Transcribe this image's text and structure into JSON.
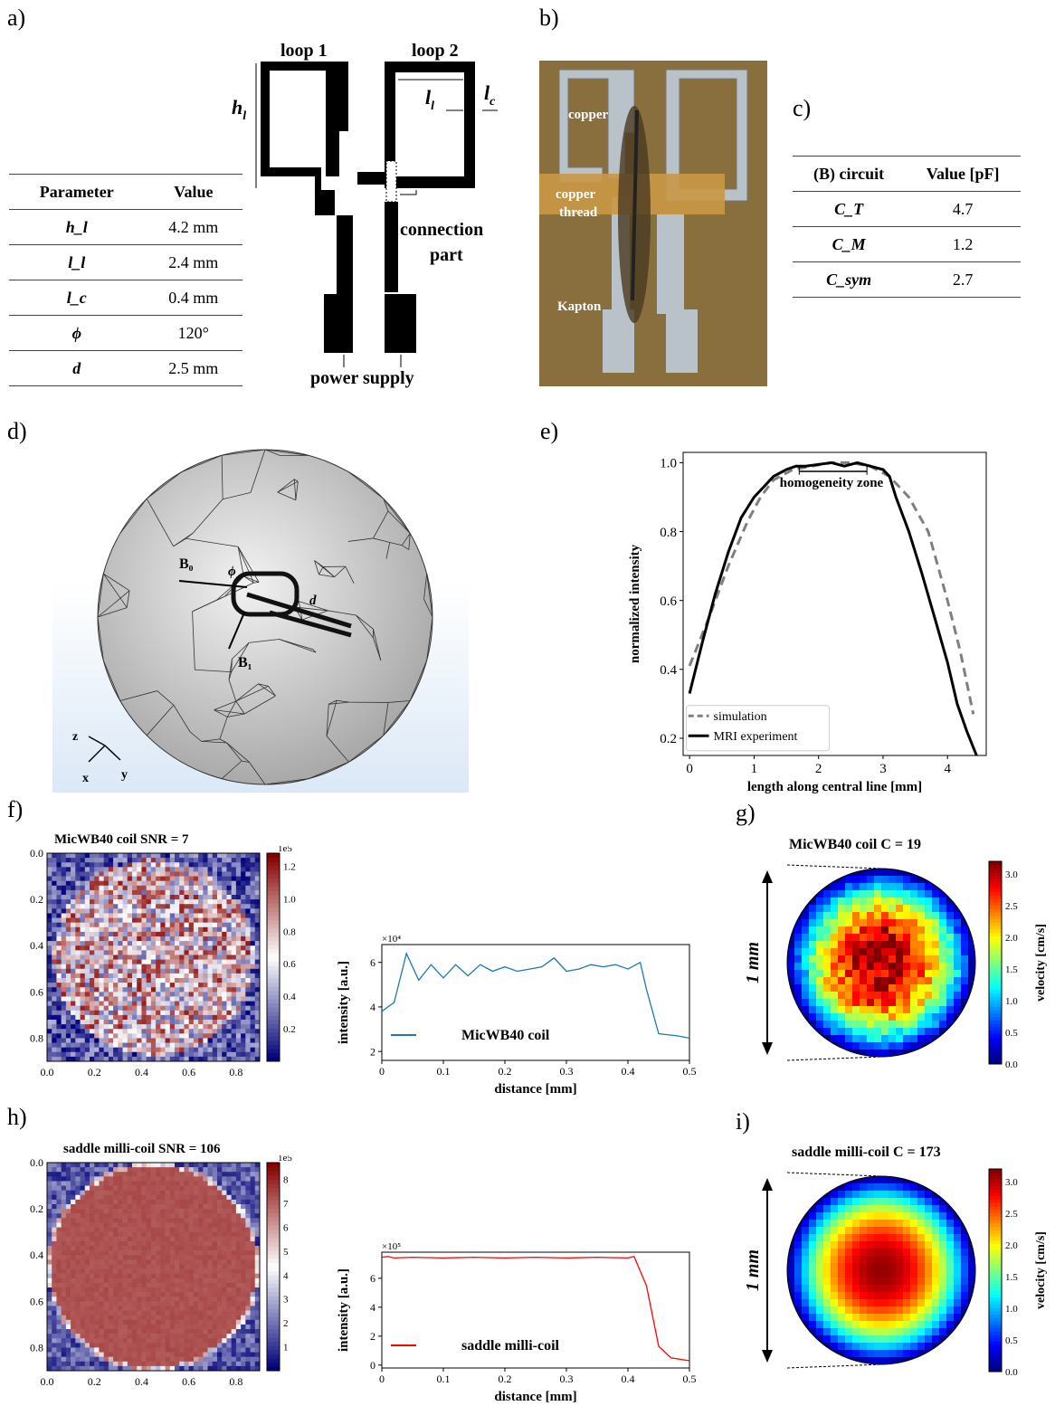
{
  "panels": {
    "a": "a)",
    "b": "b)",
    "c": "c)",
    "d": "d)",
    "e": "e)",
    "f": "f)",
    "g": "g)",
    "h": "h)",
    "i": "i)"
  },
  "table_a": {
    "headers": [
      "Parameter",
      "Value"
    ],
    "rows": [
      {
        "param": "h_l",
        "value": "4.2 mm"
      },
      {
        "param": "l_l",
        "value": "2.4 mm"
      },
      {
        "param": "l_c",
        "value": "0.4 mm"
      },
      {
        "param": "ϕ",
        "value": "120°"
      },
      {
        "param": "d",
        "value": "2.5 mm"
      }
    ]
  },
  "coil_diagram": {
    "loop1": "loop 1",
    "loop2": "loop 2",
    "hl": "h",
    "hl_sub": "l",
    "ll": "l",
    "ll_sub": "l",
    "lc": "l",
    "lc_sub": "c",
    "connection": "connection",
    "part": "part",
    "power": "power supply"
  },
  "photo_b": {
    "copper": "copper",
    "copper_thread_1": "copper",
    "copper_thread_2": "thread",
    "kapton": "Kapton"
  },
  "table_c": {
    "headers": [
      "(B) circuit",
      "Value [pF]"
    ],
    "rows": [
      {
        "param": "C_T",
        "value": "4.7"
      },
      {
        "param": "C_M",
        "value": "1.2"
      },
      {
        "param": "C_sym",
        "value": "2.7"
      }
    ]
  },
  "sphere_d": {
    "b0": "B₀",
    "b1": "B₁",
    "phi": "ϕ",
    "d": "d",
    "z": "z",
    "x": "x",
    "y": "y"
  },
  "chart_data": [
    {
      "id": "e",
      "type": "line",
      "xlabel": "length along central line [mm]",
      "ylabel": "normalized intensity",
      "xlim": [
        -0.1,
        4.6
      ],
      "ylim": [
        0.15,
        1.03
      ],
      "xticks": [
        0,
        1,
        2,
        3,
        4
      ],
      "yticks": [
        0.2,
        0.4,
        0.6,
        0.8,
        1.0
      ],
      "annotation": "homogeneity zone",
      "annotation_range": [
        1.7,
        2.75
      ],
      "legend": "bottom-left",
      "series": [
        {
          "name": "simulation",
          "style": "dashed",
          "color": "#7f7f7f",
          "x": [
            0,
            0.3,
            0.6,
            0.9,
            1.1,
            1.3,
            1.6,
            1.9,
            2.2,
            2.5,
            2.8,
            3.1,
            3.4,
            3.7,
            4.0,
            4.2,
            4.4
          ],
          "y": [
            0.41,
            0.55,
            0.7,
            0.83,
            0.9,
            0.95,
            0.98,
            0.99,
            1.0,
            1.0,
            0.99,
            0.96,
            0.9,
            0.8,
            0.6,
            0.45,
            0.27
          ]
        },
        {
          "name": "MRI experiment",
          "style": "solid",
          "color": "#000000",
          "x": [
            0,
            0.2,
            0.4,
            0.6,
            0.8,
            1.0,
            1.15,
            1.3,
            1.5,
            1.65,
            1.8,
            2.0,
            2.2,
            2.4,
            2.6,
            2.8,
            3.0,
            3.1,
            3.2,
            3.4,
            3.6,
            3.8,
            4.0,
            4.15,
            4.3,
            4.45
          ],
          "y": [
            0.33,
            0.48,
            0.62,
            0.74,
            0.84,
            0.9,
            0.93,
            0.96,
            0.98,
            0.99,
            0.99,
            0.995,
            1.0,
            0.99,
            1.0,
            0.99,
            0.98,
            0.96,
            0.9,
            0.8,
            0.68,
            0.55,
            0.42,
            0.3,
            0.22,
            0.15
          ]
        }
      ]
    },
    {
      "id": "f-map",
      "type": "heatmap",
      "title": "MicWB40 coil SNR = 7",
      "xlim": [
        0,
        0.9
      ],
      "ylim": [
        0.9,
        0
      ],
      "xticks": [
        0,
        0.2,
        0.4,
        0.6,
        0.8
      ],
      "yticks": [
        0,
        0.2,
        0.4,
        0.6,
        0.8
      ],
      "colorbar": {
        "ticks": [
          0.2,
          0.4,
          0.6,
          0.8,
          1.0,
          1.2
        ],
        "scale": "1e5",
        "max": 1.28
      },
      "pattern": "noisy disc"
    },
    {
      "id": "f-profile",
      "type": "line",
      "xlabel": "distance [mm]",
      "ylabel": "intensity [a.u.]",
      "xlim": [
        0,
        0.5
      ],
      "ylim": [
        1.6,
        6.8
      ],
      "xticks": [
        0,
        0.1,
        0.2,
        0.3,
        0.4,
        0.5
      ],
      "yticks": [
        2,
        4,
        6
      ],
      "scale": "×10⁴",
      "legend": "bottom-left",
      "series": [
        {
          "name": "MicWB40 coil",
          "color": "#1f77b4",
          "x": [
            0,
            0.02,
            0.04,
            0.06,
            0.08,
            0.1,
            0.12,
            0.14,
            0.16,
            0.18,
            0.2,
            0.22,
            0.24,
            0.26,
            0.28,
            0.3,
            0.32,
            0.34,
            0.36,
            0.38,
            0.4,
            0.42,
            0.43,
            0.45,
            0.48,
            0.5
          ],
          "y": [
            3.8,
            4.2,
            6.4,
            5.2,
            5.9,
            5.3,
            5.9,
            5.4,
            5.9,
            5.6,
            5.8,
            5.6,
            5.7,
            5.8,
            6.2,
            5.6,
            5.7,
            5.9,
            5.8,
            5.9,
            5.7,
            6.0,
            4.8,
            2.8,
            2.7,
            2.6
          ]
        }
      ]
    },
    {
      "id": "g",
      "type": "heatmap",
      "title": "MicWB40 coil C = 19",
      "label": "1 mm",
      "colorbar": {
        "label": "velocity [cm/s]",
        "ticks": [
          0.0,
          0.5,
          1.0,
          1.5,
          2.0,
          2.5,
          3.0
        ],
        "max": 3.2
      },
      "pattern": "irregular radial profile"
    },
    {
      "id": "h-map",
      "type": "heatmap",
      "title": "saddle milli-coil SNR = 106",
      "xlim": [
        0,
        0.9
      ],
      "ylim": [
        0.9,
        0
      ],
      "xticks": [
        0,
        0.2,
        0.4,
        0.6,
        0.8
      ],
      "yticks": [
        0,
        0.2,
        0.4,
        0.6,
        0.8
      ],
      "colorbar": {
        "ticks": [
          1,
          2,
          3,
          4,
          5,
          6,
          7,
          8
        ],
        "scale": "1e5",
        "max": 8.7
      },
      "pattern": "uniform disc"
    },
    {
      "id": "h-profile",
      "type": "line",
      "xlabel": "distance [mm]",
      "ylabel": "intensity [a.u.]",
      "xlim": [
        0,
        0.5
      ],
      "ylim": [
        -0.2,
        7.8
      ],
      "xticks": [
        0,
        0.1,
        0.2,
        0.3,
        0.4,
        0.5
      ],
      "yticks": [
        0,
        2,
        4,
        6
      ],
      "scale": "×10⁵",
      "legend": "bottom-left",
      "series": [
        {
          "name": "saddle milli-coil",
          "color": "#ff0000",
          "x": [
            0,
            0.01,
            0.02,
            0.05,
            0.1,
            0.15,
            0.2,
            0.25,
            0.3,
            0.35,
            0.4,
            0.41,
            0.43,
            0.45,
            0.47,
            0.5
          ],
          "y": [
            7.45,
            7.5,
            7.4,
            7.45,
            7.4,
            7.45,
            7.4,
            7.45,
            7.4,
            7.45,
            7.4,
            7.5,
            5.5,
            1.3,
            0.5,
            0.3
          ]
        }
      ]
    },
    {
      "id": "i",
      "type": "heatmap",
      "title": "saddle milli-coil C = 173",
      "label": "1 mm",
      "colorbar": {
        "label": "velocity [cm/s]",
        "ticks": [
          0.0,
          0.5,
          1.0,
          1.5,
          2.0,
          2.5,
          3.0
        ],
        "max": 3.2
      },
      "pattern": "smooth parabolic profile"
    }
  ]
}
